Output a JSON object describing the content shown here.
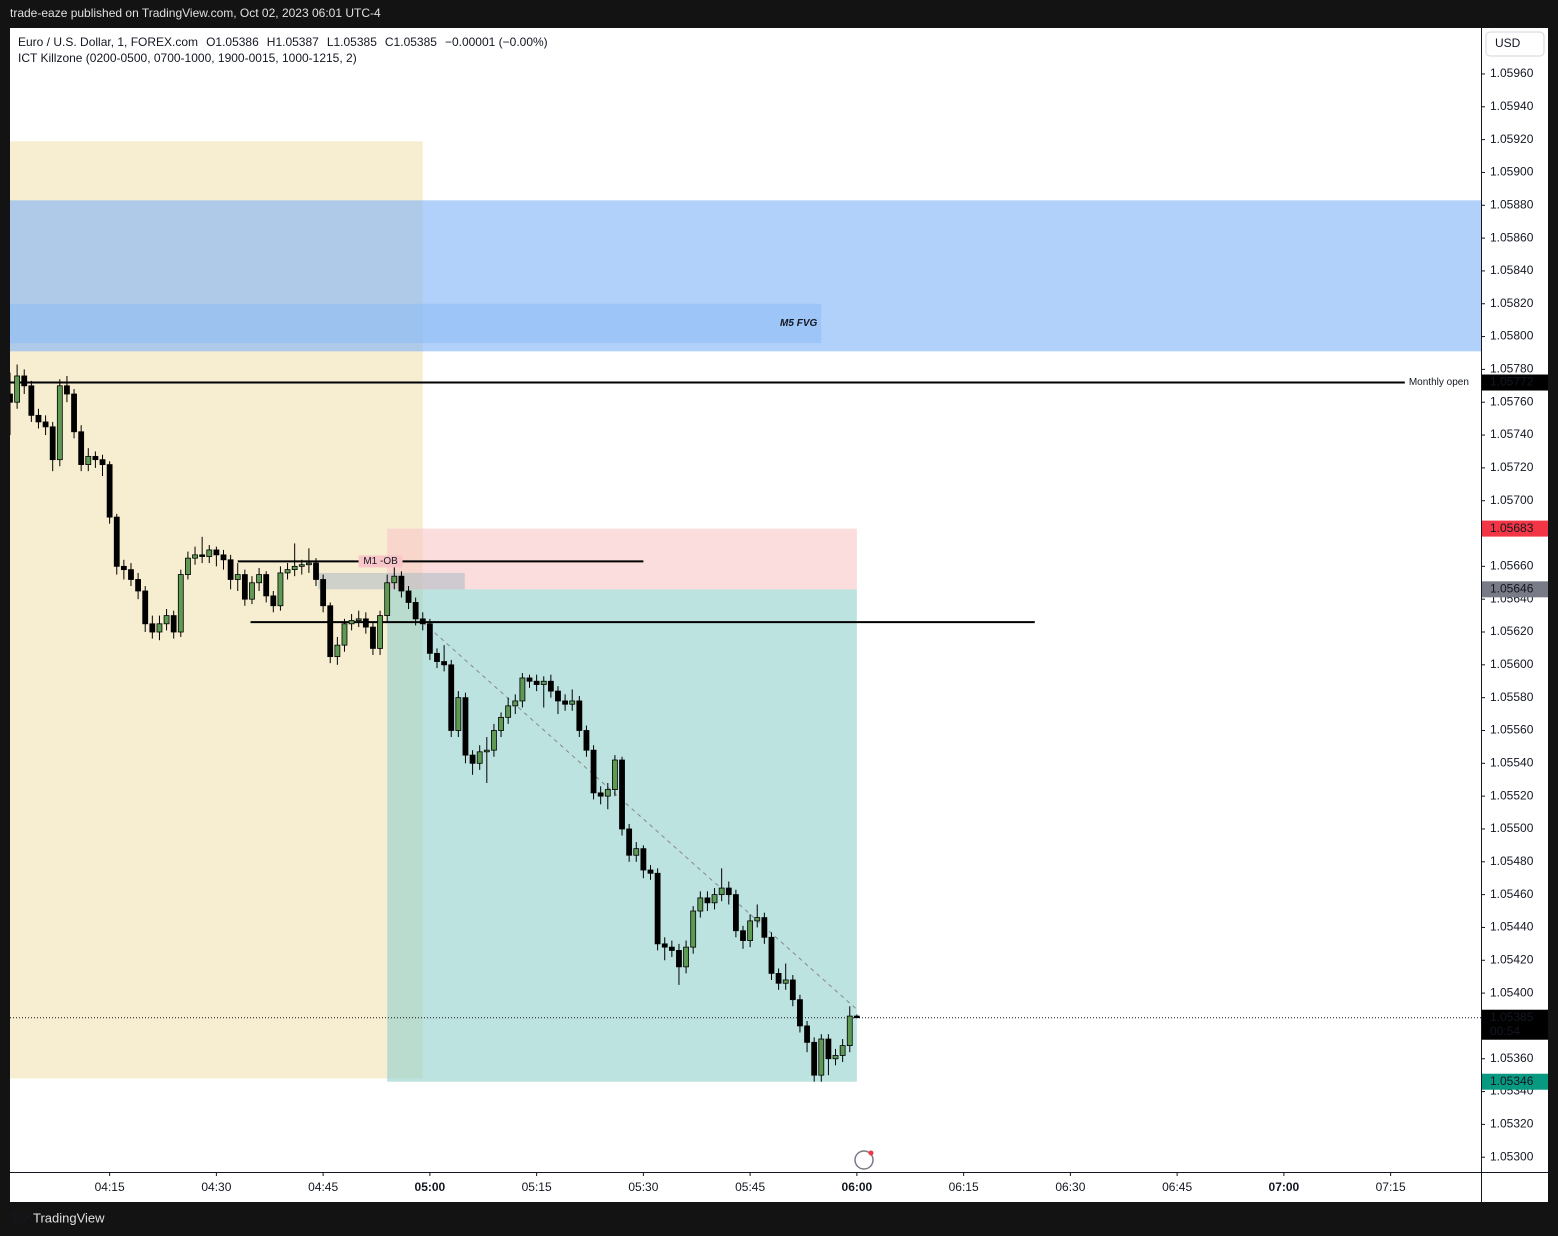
{
  "header": {
    "publisher": "trade-eaze published on TradingView.com, Oct 02, 2023 06:01 UTC-4",
    "footer_logo": "TradingView"
  },
  "chart_data": {
    "type": "candlestick",
    "symbol": "Euro / U.S. Dollar, 1, FOREX.com",
    "legend_ohlc": [
      "O1.05386",
      "H1.05387",
      "L1.05385",
      "C1.05385",
      "−0.00001 (−0.00%)"
    ],
    "indicator": "ICT Killzone (0200-0500, 0700-1000, 1900-0015, 1000-1215, 2)",
    "currency": "USD",
    "up_color": "#5f9a55",
    "down_color": "#000000",
    "x": [
      241,
      242,
      243,
      244,
      245,
      246,
      247,
      248,
      249,
      250,
      251,
      252,
      253,
      254,
      255,
      256,
      257,
      258,
      259,
      260,
      261,
      262,
      263,
      264,
      265,
      266,
      267,
      268,
      269,
      270,
      271,
      272,
      273,
      274,
      275,
      276,
      277,
      278,
      279,
      280,
      281,
      282,
      283,
      284,
      285,
      286,
      287,
      288,
      289,
      290,
      291,
      292,
      293,
      294,
      295,
      296,
      297,
      298,
      299,
      300,
      301,
      302,
      303,
      304,
      305,
      306,
      307,
      308,
      309,
      310,
      311,
      312,
      313,
      314,
      315,
      316,
      317,
      318,
      319,
      320,
      321,
      322,
      323,
      324,
      325,
      326,
      327,
      328,
      329,
      330,
      331,
      332,
      333,
      334,
      335,
      336,
      337,
      338,
      339,
      340,
      341,
      342,
      343,
      344,
      345,
      346,
      347,
      348,
      349,
      350,
      351,
      352,
      353,
      354,
      355,
      356,
      357,
      358,
      359,
      360
    ],
    "ohlc": [
      [
        1.05765,
        1.05778,
        1.0574,
        1.0576
      ],
      [
        1.0576,
        1.05783,
        1.05756,
        1.05776
      ],
      [
        1.05776,
        1.0578,
        1.05765,
        1.0577
      ],
      [
        1.0577,
        1.05773,
        1.05748,
        1.05752
      ],
      [
        1.05752,
        1.05756,
        1.05744,
        1.05748
      ],
      [
        1.05748,
        1.05752,
        1.0574,
        1.05745
      ],
      [
        1.05745,
        1.05748,
        1.05718,
        1.05725
      ],
      [
        1.05725,
        1.05774,
        1.05721,
        1.0577
      ],
      [
        1.0577,
        1.05776,
        1.0576,
        1.05765
      ],
      [
        1.05765,
        1.05768,
        1.05738,
        1.05742
      ],
      [
        1.05742,
        1.05746,
        1.05718,
        1.05722
      ],
      [
        1.05722,
        1.05732,
        1.05718,
        1.05727
      ],
      [
        1.05727,
        1.0573,
        1.0572,
        1.05725
      ],
      [
        1.05725,
        1.05728,
        1.05715,
        1.05722
      ],
      [
        1.05722,
        1.05724,
        1.05686,
        1.0569
      ],
      [
        1.0569,
        1.05692,
        1.05655,
        1.0566
      ],
      [
        1.0566,
        1.05664,
        1.05652,
        1.05658
      ],
      [
        1.05658,
        1.05662,
        1.05648,
        1.05652
      ],
      [
        1.05652,
        1.05656,
        1.0564,
        1.05645
      ],
      [
        1.05645,
        1.05648,
        1.0562,
        1.05625
      ],
      [
        1.05625,
        1.0563,
        1.05616,
        1.0562
      ],
      [
        1.0562,
        1.0563,
        1.05615,
        1.05625
      ],
      [
        1.05625,
        1.05634,
        1.05621,
        1.0563
      ],
      [
        1.0563,
        1.05633,
        1.05616,
        1.0562
      ],
      [
        1.0562,
        1.05658,
        1.05617,
        1.05655
      ],
      [
        1.05655,
        1.05669,
        1.05652,
        1.05665
      ],
      [
        1.05665,
        1.05672,
        1.05661,
        1.05667
      ],
      [
        1.05667,
        1.05678,
        1.05662,
        1.05666
      ],
      [
        1.05666,
        1.05673,
        1.05662,
        1.0567
      ],
      [
        1.0567,
        1.05672,
        1.0566,
        1.05667
      ],
      [
        1.05667,
        1.0567,
        1.05658,
        1.05664
      ],
      [
        1.05664,
        1.05667,
        1.05646,
        1.05652
      ],
      [
        1.05652,
        1.05662,
        1.05645,
        1.05655
      ],
      [
        1.05655,
        1.05658,
        1.05636,
        1.0564
      ],
      [
        1.0564,
        1.05654,
        1.05637,
        1.0565
      ],
      [
        1.0565,
        1.05659,
        1.05645,
        1.05655
      ],
      [
        1.05655,
        1.05657,
        1.05638,
        1.05642
      ],
      [
        1.05642,
        1.05645,
        1.05632,
        1.05636
      ],
      [
        1.05636,
        1.0566,
        1.05633,
        1.05656
      ],
      [
        1.05656,
        1.05662,
        1.05652,
        1.05658
      ],
      [
        1.05658,
        1.05674,
        1.05654,
        1.0566
      ],
      [
        1.0566,
        1.05664,
        1.05655,
        1.05661
      ],
      [
        1.05661,
        1.05671,
        1.05656,
        1.05662
      ],
      [
        1.05662,
        1.05665,
        1.05648,
        1.05652
      ],
      [
        1.05652,
        1.05655,
        1.05632,
        1.05636
      ],
      [
        1.05636,
        1.05638,
        1.05601,
        1.05605
      ],
      [
        1.05605,
        1.05617,
        1.056,
        1.05612
      ],
      [
        1.05612,
        1.05628,
        1.05608,
        1.05625
      ],
      [
        1.05625,
        1.05631,
        1.05621,
        1.05627
      ],
      [
        1.05627,
        1.05633,
        1.05623,
        1.05628
      ],
      [
        1.05628,
        1.05632,
        1.05619,
        1.05623
      ],
      [
        1.05623,
        1.05626,
        1.05606,
        1.0561
      ],
      [
        1.0561,
        1.05633,
        1.05606,
        1.0563
      ],
      [
        1.0563,
        1.05655,
        1.05626,
        1.0565
      ],
      [
        1.0565,
        1.0566,
        1.05646,
        1.05654
      ],
      [
        1.05654,
        1.05657,
        1.05641,
        1.05645
      ],
      [
        1.05645,
        1.05648,
        1.05634,
        1.05638
      ],
      [
        1.05638,
        1.05641,
        1.05624,
        1.05628
      ],
      [
        1.05628,
        1.05632,
        1.05621,
        1.05625
      ],
      [
        1.05625,
        1.05628,
        1.05603,
        1.05607
      ],
      [
        1.05607,
        1.0561,
        1.05598,
        1.05602
      ],
      [
        1.05602,
        1.05612,
        1.05596,
        1.056
      ],
      [
        1.056,
        1.05603,
        1.05556,
        1.0556
      ],
      [
        1.0556,
        1.05584,
        1.05556,
        1.0558
      ],
      [
        1.0558,
        1.05583,
        1.0554,
        1.05545
      ],
      [
        1.05545,
        1.05548,
        1.05533,
        1.0554
      ],
      [
        1.0554,
        1.05551,
        1.05536,
        1.05547
      ],
      [
        1.05547,
        1.05556,
        1.05528,
        1.05548
      ],
      [
        1.05548,
        1.05564,
        1.05544,
        1.0556
      ],
      [
        1.0556,
        1.05571,
        1.05556,
        1.05568
      ],
      [
        1.05568,
        1.0558,
        1.05564,
        1.05575
      ],
      [
        1.05575,
        1.05582,
        1.0557,
        1.05578
      ],
      [
        1.05578,
        1.05595,
        1.05574,
        1.05592
      ],
      [
        1.05592,
        1.05594,
        1.05586,
        1.0559
      ],
      [
        1.0559,
        1.05594,
        1.05584,
        1.05588
      ],
      [
        1.05588,
        1.05593,
        1.05574,
        1.0559
      ],
      [
        1.0559,
        1.05594,
        1.0558,
        1.05584
      ],
      [
        1.05584,
        1.05587,
        1.0557,
        1.05578
      ],
      [
        1.05578,
        1.05582,
        1.05572,
        1.05576
      ],
      [
        1.05576,
        1.05585,
        1.05572,
        1.05578
      ],
      [
        1.05578,
        1.05581,
        1.05556,
        1.0556
      ],
      [
        1.0556,
        1.05563,
        1.05544,
        1.05548
      ],
      [
        1.05548,
        1.05551,
        1.05518,
        1.05522
      ],
      [
        1.05522,
        1.05526,
        1.05515,
        1.0552
      ],
      [
        1.0552,
        1.05528,
        1.05512,
        1.05524
      ],
      [
        1.05524,
        1.05545,
        1.0552,
        1.05542
      ],
      [
        1.05542,
        1.05544,
        1.05496,
        1.055
      ],
      [
        1.055,
        1.05503,
        1.0548,
        1.05484
      ],
      [
        1.05484,
        1.05492,
        1.0548,
        1.05488
      ],
      [
        1.05488,
        1.0549,
        1.0547,
        1.05475
      ],
      [
        1.05475,
        1.05478,
        1.05469,
        1.05473
      ],
      [
        1.05473,
        1.05476,
        1.05426,
        1.0543
      ],
      [
        1.0543,
        1.05434,
        1.0542,
        1.05428
      ],
      [
        1.05428,
        1.05432,
        1.05422,
        1.05426
      ],
      [
        1.05426,
        1.0543,
        1.05405,
        1.05416
      ],
      [
        1.05416,
        1.05432,
        1.05412,
        1.05428
      ],
      [
        1.05428,
        1.05453,
        1.05424,
        1.0545
      ],
      [
        1.0545,
        1.05462,
        1.05446,
        1.05458
      ],
      [
        1.05458,
        1.05462,
        1.0545,
        1.05455
      ],
      [
        1.05455,
        1.05464,
        1.05451,
        1.0546
      ],
      [
        1.0546,
        1.05476,
        1.05456,
        1.05464
      ],
      [
        1.05464,
        1.05468,
        1.05454,
        1.0546
      ],
      [
        1.0546,
        1.05463,
        1.05434,
        1.05438
      ],
      [
        1.05438,
        1.05441,
        1.05427,
        1.05432
      ],
      [
        1.05432,
        1.05448,
        1.05428,
        1.05444
      ],
      [
        1.05444,
        1.05454,
        1.0544,
        1.05446
      ],
      [
        1.05446,
        1.05449,
        1.0543,
        1.05434
      ],
      [
        1.05434,
        1.05437,
        1.05408,
        1.05412
      ],
      [
        1.05412,
        1.05415,
        1.05402,
        1.05406
      ],
      [
        1.05406,
        1.05418,
        1.05402,
        1.05408
      ],
      [
        1.05408,
        1.05411,
        1.05392,
        1.05396
      ],
      [
        1.05396,
        1.05399,
        1.05376,
        1.0538
      ],
      [
        1.0538,
        1.05383,
        1.05364,
        1.0537
      ],
      [
        1.0537,
        1.05373,
        1.05346,
        1.0535
      ],
      [
        1.0535,
        1.05375,
        1.05346,
        1.05372
      ],
      [
        1.05372,
        1.05375,
        1.0535,
        1.0536
      ],
      [
        1.0536,
        1.05366,
        1.05356,
        1.05362
      ],
      [
        1.05362,
        1.05372,
        1.05358,
        1.05368
      ],
      [
        1.05368,
        1.05392,
        1.05364,
        1.05386
      ],
      [
        1.05386,
        1.05387,
        1.05385,
        1.05385
      ]
    ],
    "xlim": [
      241,
      447.7
    ],
    "xticks": [
      {
        "value": 255,
        "label": "04:15"
      },
      {
        "value": 270,
        "label": "04:30"
      },
      {
        "value": 285,
        "label": "04:45"
      },
      {
        "value": 300,
        "label": "05:00"
      },
      {
        "value": 315,
        "label": "05:15"
      },
      {
        "value": 330,
        "label": "05:30"
      },
      {
        "value": 345,
        "label": "05:45"
      },
      {
        "value": 360,
        "label": "06:00"
      },
      {
        "value": 375,
        "label": "06:15"
      },
      {
        "value": 390,
        "label": "06:30"
      },
      {
        "value": 405,
        "label": "06:45"
      },
      {
        "value": 420,
        "label": "07:00"
      },
      {
        "value": 435,
        "label": "07:15"
      }
    ],
    "ylim": [
      1.05291,
      1.05988
    ],
    "yticks": [
      {
        "value": 1.053,
        "label": "1.05300"
      },
      {
        "value": 1.0532,
        "label": "1.05320"
      },
      {
        "value": 1.0534,
        "label": "1.05340"
      },
      {
        "value": 1.0536,
        "label": "1.05360"
      },
      {
        "value": 1.0538,
        "label": "1.05380"
      },
      {
        "value": 1.054,
        "label": "1.05400"
      },
      {
        "value": 1.0542,
        "label": "1.05420"
      },
      {
        "value": 1.0544,
        "label": "1.05440"
      },
      {
        "value": 1.0546,
        "label": "1.05460"
      },
      {
        "value": 1.0548,
        "label": "1.05480"
      },
      {
        "value": 1.055,
        "label": "1.05500"
      },
      {
        "value": 1.0552,
        "label": "1.05520"
      },
      {
        "value": 1.0554,
        "label": "1.05540"
      },
      {
        "value": 1.0556,
        "label": "1.05560"
      },
      {
        "value": 1.0558,
        "label": "1.05580"
      },
      {
        "value": 1.056,
        "label": "1.05600"
      },
      {
        "value": 1.0562,
        "label": "1.05620"
      },
      {
        "value": 1.0564,
        "label": "1.05640"
      },
      {
        "value": 1.0566,
        "label": "1.05660"
      },
      {
        "value": 1.0568,
        "label": "1.05680"
      },
      {
        "value": 1.057,
        "label": "1.05700"
      },
      {
        "value": 1.0572,
        "label": "1.05720"
      },
      {
        "value": 1.0574,
        "label": "1.05740"
      },
      {
        "value": 1.0576,
        "label": "1.05760"
      },
      {
        "value": 1.0578,
        "label": "1.05780"
      },
      {
        "value": 1.058,
        "label": "1.05800"
      },
      {
        "value": 1.0582,
        "label": "1.05820"
      },
      {
        "value": 1.0584,
        "label": "1.05840"
      },
      {
        "value": 1.0586,
        "label": "1.05860"
      },
      {
        "value": 1.0588,
        "label": "1.05880"
      },
      {
        "value": 1.059,
        "label": "1.05900"
      },
      {
        "value": 1.0592,
        "label": "1.05920"
      },
      {
        "value": 1.0594,
        "label": "1.05940"
      },
      {
        "value": 1.0596,
        "label": "1.05960"
      }
    ],
    "zones": [
      {
        "x0": 241,
        "x1": 299,
        "y0": 1.05348,
        "y1": 1.05919,
        "color": "#f2e3b3"
      },
      {
        "x0": 241,
        "x1": 447.7,
        "y0": 1.05791,
        "y1": 1.05883,
        "color": "#7fb2f7"
      },
      {
        "x0": 241,
        "x1": 355,
        "y0": 1.05796,
        "y1": 1.0582,
        "color": "#8fbcf5",
        "label": "M5 FVG"
      },
      {
        "x0": 294,
        "x1": 360,
        "y0": 1.05646,
        "y1": 1.05683,
        "color": "#f8c6c8"
      },
      {
        "x0": 294,
        "x1": 360,
        "y0": 1.05346,
        "y1": 1.05646,
        "color": "#8fd1cb"
      },
      {
        "x0": 284.3,
        "x1": 304.9,
        "y0": 1.05646,
        "y1": 1.05656,
        "color": "#b0bec5"
      }
    ],
    "lines": [
      {
        "x0": 241,
        "x1": 437,
        "y0": 1.05772,
        "y1": 1.05772,
        "color": "#000000",
        "label": "Monthly open"
      },
      {
        "x0": 273,
        "x1": 330,
        "y0": 1.05663,
        "y1": 1.05663,
        "color": "#000000",
        "label": "M1 -OB"
      },
      {
        "x0": 274.8,
        "x1": 385,
        "y0": 1.05626,
        "y1": 1.05626,
        "color": "#000000"
      },
      {
        "x0": 299,
        "x1": 360,
        "y0": 1.05626,
        "y1": 1.0539,
        "color": "#888888",
        "dashed": true
      }
    ],
    "price_markers": [
      {
        "value": 1.05772,
        "color": "#000000"
      },
      {
        "value": 1.05683,
        "color": "#f23645"
      },
      {
        "value": 1.05646,
        "color": "#787b86"
      },
      {
        "value": 1.05346,
        "color": "#089981"
      },
      {
        "value": 1.05385,
        "color": "#000000",
        "countdown": "00:54"
      }
    ]
  }
}
